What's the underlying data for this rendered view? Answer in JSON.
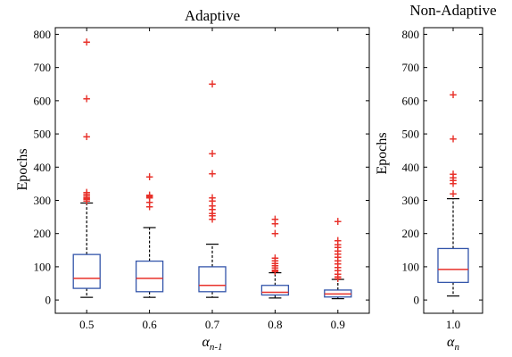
{
  "chart_data": [
    {
      "type": "box",
      "title": "Adaptive",
      "ylabel": "Epochs",
      "xlabel_symbol": "α",
      "xlabel_subscript": "n-1",
      "ylim": [
        -40,
        820
      ],
      "yticks": [
        0,
        100,
        200,
        300,
        400,
        500,
        600,
        700,
        800
      ],
      "categories": [
        "0.5",
        "0.6",
        "0.7",
        "0.8",
        "0.9"
      ],
      "boxes": [
        {
          "category": "0.5",
          "whisker_low": 8,
          "q1": 35,
          "median": 65,
          "q3": 137,
          "whisker_high": 292,
          "outliers": [
            778,
            608,
            493,
            326,
            320,
            315,
            310,
            305,
            300
          ]
        },
        {
          "category": "0.6",
          "whisker_low": 8,
          "q1": 25,
          "median": 65,
          "q3": 117,
          "whisker_high": 218,
          "outliers": [
            372,
            318,
            314,
            310,
            296,
            282
          ]
        },
        {
          "category": "0.7",
          "whisker_low": 8,
          "q1": 25,
          "median": 44,
          "q3": 100,
          "whisker_high": 168,
          "outliers": [
            652,
            443,
            382,
            310,
            300,
            285,
            275,
            262,
            255,
            245
          ]
        },
        {
          "category": "0.8",
          "whisker_low": 6,
          "q1": 15,
          "median": 23,
          "q3": 44,
          "whisker_high": 82,
          "outliers": [
            245,
            232,
            202,
            128,
            120,
            112,
            105,
            98,
            92,
            88
          ]
        },
        {
          "category": "0.9",
          "whisker_low": 4,
          "q1": 9,
          "median": 18,
          "q3": 30,
          "whisker_high": 62,
          "outliers": [
            238,
            180,
            168,
            160,
            150,
            140,
            130,
            120,
            110,
            100,
            90,
            80,
            72,
            66
          ]
        }
      ],
      "colors": {
        "box": "#3355aa",
        "median": "#e8312a",
        "outlier": "#e8312a",
        "whisker": "#000000"
      }
    },
    {
      "type": "box",
      "title": "Non-Adaptive",
      "ylabel": "Epochs",
      "xlabel_symbol": "α",
      "xlabel_subscript": "n",
      "ylim": [
        -40,
        820
      ],
      "yticks": [
        0,
        100,
        200,
        300,
        400,
        500,
        600,
        700,
        800
      ],
      "categories": [
        "1.0"
      ],
      "boxes": [
        {
          "category": "1.0",
          "whisker_low": 12,
          "q1": 53,
          "median": 92,
          "q3": 155,
          "whisker_high": 305,
          "outliers": [
            620,
            487,
            380,
            370,
            362,
            352,
            322
          ]
        }
      ],
      "colors": {
        "box": "#3355aa",
        "median": "#e8312a",
        "outlier": "#e8312a",
        "whisker": "#000000"
      }
    }
  ]
}
